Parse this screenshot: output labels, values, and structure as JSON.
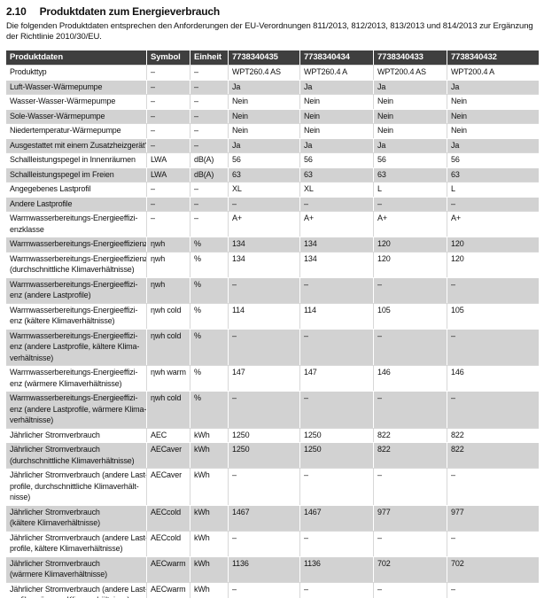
{
  "page": {
    "section_number": "2.10",
    "title": "Produktdaten zum Energieverbrauch",
    "intro": "Die folgenden Produktdaten entsprechen den Anforderungen der EU-Verordnungen 811/2013, 812/2013, 813/2013 und 814/2013 zur Ergänzung der Richtlinie 2010/30/EU."
  },
  "colors": {
    "header_bg": "#3f3f3f",
    "header_text": "#ffffff",
    "alt_row_bg": "#d2d2d2",
    "text": "#111111"
  },
  "table": {
    "headers": [
      "Produktdaten",
      "Symbol",
      "Einheit",
      "7738340435",
      "7738340434",
      "7738340433",
      "7738340432"
    ],
    "rows": [
      {
        "label": "Produkttyp",
        "symbol": "–",
        "unit": "–",
        "values": [
          "WPT260.4 AS",
          "WPT260.4 A",
          "WPT200.4 AS",
          "WPT200.4 A"
        ]
      },
      {
        "label": "Luft-Wasser-Wärmepumpe",
        "symbol": "–",
        "unit": "–",
        "values": [
          "Ja",
          "Ja",
          "Ja",
          "Ja"
        ]
      },
      {
        "label": "Wasser-Wasser-Wärmepumpe",
        "symbol": "–",
        "unit": "–",
        "values": [
          "Nein",
          "Nein",
          "Nein",
          "Nein"
        ]
      },
      {
        "label": "Sole-Wasser-Wärmepumpe",
        "symbol": "–",
        "unit": "–",
        "values": [
          "Nein",
          "Nein",
          "Nein",
          "Nein"
        ]
      },
      {
        "label": "Niedertemperatur-Wärmepumpe",
        "symbol": "–",
        "unit": "–",
        "values": [
          "Nein",
          "Nein",
          "Nein",
          "Nein"
        ]
      },
      {
        "label": "Ausgestattet mit einem Zusatzheizgerät?",
        "symbol": "–",
        "unit": "–",
        "values": [
          "Ja",
          "Ja",
          "Ja",
          "Ja"
        ]
      },
      {
        "label": "Schallleistungspegel in Innenräumen",
        "symbol": "LWA",
        "unit": "dB(A)",
        "values": [
          "56",
          "56",
          "56",
          "56"
        ]
      },
      {
        "label": "Schallleistungspegel im Freien",
        "symbol": "LWA",
        "unit": "dB(A)",
        "values": [
          "63",
          "63",
          "63",
          "63"
        ]
      },
      {
        "label": "Angegebenes Lastprofil",
        "symbol": "–",
        "unit": "–",
        "values": [
          "XL",
          "XL",
          "L",
          "L"
        ]
      },
      {
        "label": "Andere Lastprofile",
        "symbol": "–",
        "unit": "–",
        "values": [
          "–",
          "–",
          "–",
          "–"
        ]
      },
      {
        "label": "Warmwasserbereitungs-Energieeffizi-\nenzklasse",
        "symbol": "–",
        "unit": "–",
        "values": [
          "A+",
          "A+",
          "A+",
          "A+"
        ]
      },
      {
        "label": "Warmwasserbereitungs-Energieeffizienz",
        "symbol": "ηwh",
        "unit": "%",
        "values": [
          "134",
          "134",
          "120",
          "120"
        ]
      },
      {
        "label": "Warmwasserbereitungs-Energieeffizienz\n(durchschnittliche Klimaverhältnisse)",
        "symbol": "ηwh",
        "unit": "%",
        "values": [
          "134",
          "134",
          "120",
          "120"
        ]
      },
      {
        "label": "Warmwasserbereitungs-Energieeffizi-\nenz (andere Lastprofile)",
        "symbol": "ηwh",
        "unit": "%",
        "values": [
          "–",
          "–",
          "–",
          "–"
        ]
      },
      {
        "label": "Warmwasserbereitungs-Energieeffizi-\nenz (kältere Klimaverhältnisse)",
        "symbol": "ηwh cold",
        "unit": "%",
        "values": [
          "114",
          "114",
          "105",
          "105"
        ]
      },
      {
        "label": "Warmwasserbereitungs-Energieeffizi-\nenz (andere Lastprofile, kältere Klima-\nverhältnisse)",
        "symbol": "ηwh cold",
        "unit": "%",
        "values": [
          "–",
          "–",
          "–",
          "–"
        ]
      },
      {
        "label": "Warmwasserbereitungs-Energieeffizi-\nenz (wärmere Klimaverhältnisse)",
        "symbol": "ηwh warm",
        "unit": "%",
        "values": [
          "147",
          "147",
          "146",
          "146"
        ]
      },
      {
        "label": "Warmwasserbereitungs-Energieeffizi-\nenz (andere Lastprofile, wärmere Klima-\nverhältnisse)",
        "symbol": "ηwh cold",
        "unit": "%",
        "values": [
          "–",
          "–",
          "–",
          "–"
        ]
      },
      {
        "label": "Jährlicher Stromverbrauch",
        "symbol": "AEC",
        "unit": "kWh",
        "values": [
          "1250",
          "1250",
          "822",
          "822"
        ]
      },
      {
        "label": "Jährlicher Stromverbrauch\n(durchschnittliche Klimaverhältnisse)",
        "symbol": "AECaver",
        "unit": "kWh",
        "values": [
          "1250",
          "1250",
          "822",
          "822"
        ]
      },
      {
        "label": "Jährlicher Stromverbrauch (andere Last-\nprofile, durchschnittliche Klimaverhält-\nnisse)",
        "symbol": "AECaver",
        "unit": "kWh",
        "values": [
          "–",
          "–",
          "–",
          "–"
        ]
      },
      {
        "label": "Jährlicher Stromverbrauch\n(kältere Klimaverhältnisse)",
        "symbol": "AECcold",
        "unit": "kWh",
        "values": [
          "1467",
          "1467",
          "977",
          "977"
        ]
      },
      {
        "label": "Jährlicher Stromverbrauch (andere Last-\nprofile, kältere Klimaverhältnisse)",
        "symbol": "AECcold",
        "unit": "kWh",
        "values": [
          "–",
          "–",
          "–",
          "–"
        ]
      },
      {
        "label": "Jährlicher Stromverbrauch\n(wärmere Klimaverhältnisse)",
        "symbol": "AECwarm",
        "unit": "kWh",
        "values": [
          "1136",
          "1136",
          "702",
          "702"
        ]
      },
      {
        "label": "Jährlicher Stromverbrauch (andere Last-\nprofile, wärmere Klimaverhältnisse)",
        "symbol": "AECwarm",
        "unit": "kWh",
        "values": [
          "–",
          "–",
          "–",
          "–"
        ]
      }
    ]
  }
}
